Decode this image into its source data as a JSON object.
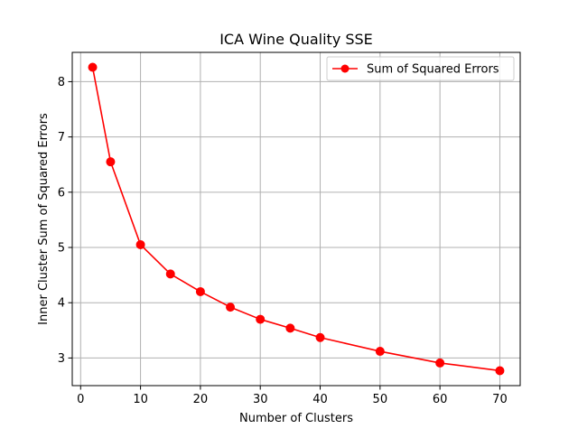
{
  "chart_data": {
    "type": "line",
    "title": "ICA Wine Quality  SSE",
    "xlabel": "Number of Clusters",
    "ylabel": "Inner Cluster Sum of Squared Errors",
    "xlim": [
      -1.4,
      73.4
    ],
    "ylim": [
      2.5,
      8.53
    ],
    "xticks": [
      0,
      10,
      20,
      30,
      40,
      50,
      60,
      70
    ],
    "yticks": [
      3,
      4,
      5,
      6,
      7,
      8
    ],
    "grid": true,
    "legend_position": "top-right",
    "series": [
      {
        "name": "Sum of Squared Errors",
        "color": "#ff0000",
        "marker": "circle",
        "x": [
          2,
          5,
          10,
          15,
          20,
          25,
          30,
          35,
          40,
          50,
          60,
          70
        ],
        "y": [
          8.26,
          6.55,
          5.05,
          4.52,
          4.2,
          3.92,
          3.7,
          3.54,
          3.37,
          3.12,
          2.91,
          2.77
        ]
      }
    ]
  }
}
